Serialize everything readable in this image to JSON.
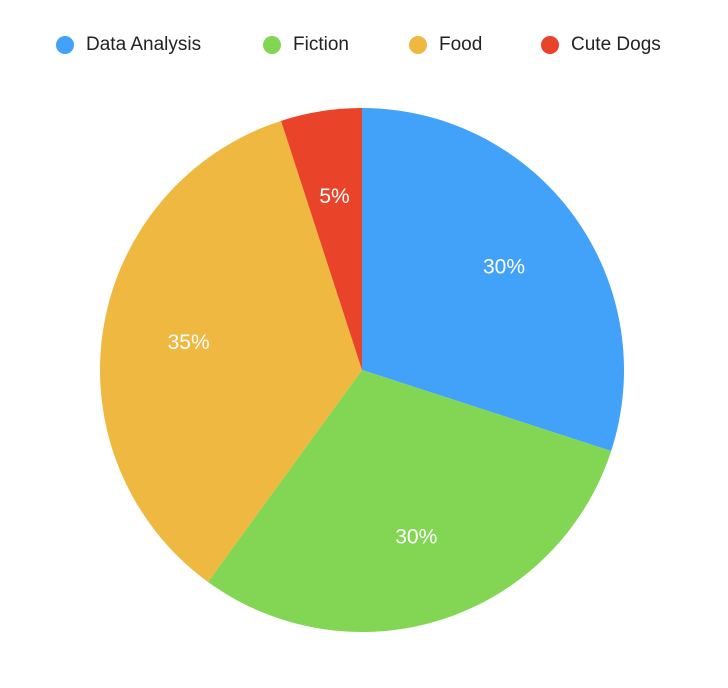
{
  "chart_data": {
    "type": "pie",
    "legend_position": "top",
    "slices": [
      {
        "label": "Data Analysis",
        "value": 30,
        "value_label": "30%",
        "color": "#42a1f8"
      },
      {
        "label": "Fiction",
        "value": 30,
        "value_label": "30%",
        "color": "#82d653"
      },
      {
        "label": "Food",
        "value": 35,
        "value_label": "35%",
        "color": "#efb840"
      },
      {
        "label": "Cute Dogs",
        "value": 5,
        "value_label": "5%",
        "color": "#e9432a"
      }
    ]
  }
}
